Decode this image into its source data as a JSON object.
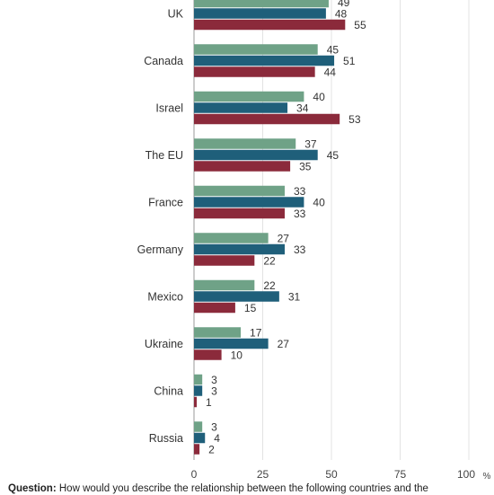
{
  "chart_data": {
    "type": "bar",
    "orientation": "horizontal",
    "categories": [
      "UK",
      "Canada",
      "Israel",
      "The EU",
      "France",
      "Germany",
      "Mexico",
      "Ukraine",
      "China",
      "Russia"
    ],
    "series": [
      {
        "color": "#6fa287",
        "values": [
          49,
          45,
          40,
          37,
          33,
          27,
          22,
          17,
          3,
          3
        ]
      },
      {
        "color": "#1f5f7a",
        "values": [
          48,
          51,
          34,
          45,
          40,
          33,
          31,
          27,
          3,
          4
        ]
      },
      {
        "color": "#8b2a3b",
        "values": [
          55,
          44,
          53,
          35,
          33,
          22,
          15,
          10,
          1,
          2
        ]
      }
    ],
    "x_ticks": [
      0,
      25,
      50,
      75,
      100
    ],
    "x_unit": "%",
    "xlim": [
      0,
      100
    ],
    "grid": true
  },
  "footnote": {
    "lead": "Question:",
    "text": "How would you describe the relationship between the following countries and the"
  }
}
